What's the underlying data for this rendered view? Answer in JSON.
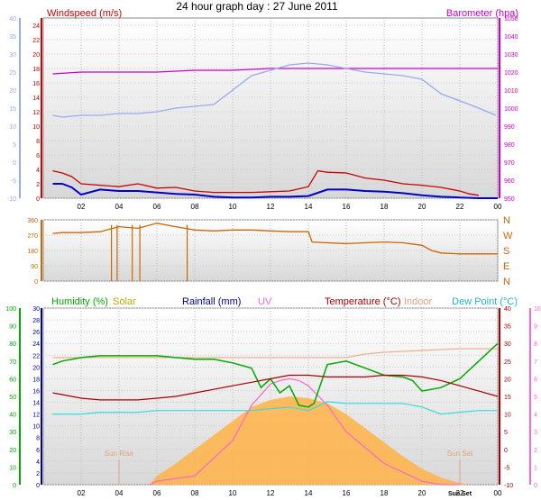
{
  "title": "24 hour graph day : 27 June 2011",
  "time_ticks": [
    "02",
    "04",
    "06",
    "08",
    "10",
    "12",
    "14",
    "16",
    "18",
    "20",
    "22",
    "00"
  ],
  "colors": {
    "wind": "#cc0000",
    "gust_avg": "#0000cc",
    "temp_air": "#99aaee",
    "baro": "#cc00cc",
    "dir": "#cc6600",
    "humidity": "#00aa00",
    "solar": "#ffb347",
    "rain": "#000099",
    "uv": "#ff66cc",
    "temperature": "#aa0000",
    "indoor": "#f0b090",
    "dew": "#33dddd"
  },
  "chart_data": [
    {
      "type": "line",
      "id": "wind-baro",
      "labels": {
        "left": "Windspeed (m/s)",
        "right": "Barometer (hpa)"
      },
      "x_range": [
        0,
        24
      ],
      "left_axis": {
        "ticks": [
          "0",
          "2",
          "4",
          "6",
          "8",
          "10",
          "12",
          "14",
          "16",
          "18",
          "20",
          "22",
          "24"
        ],
        "range": [
          0,
          25
        ]
      },
      "outer_left_axis": {
        "ticks": [
          "-10",
          "-5",
          "0",
          "5",
          "10",
          "15",
          "20",
          "25",
          "30",
          "35",
          "40"
        ],
        "range": [
          -10,
          40
        ]
      },
      "right_axis": {
        "ticks": [
          "950",
          "960",
          "970",
          "980",
          "990",
          "1000",
          "1010",
          "1020",
          "1030",
          "1040",
          "1050"
        ],
        "range": [
          950,
          1050
        ]
      },
      "series": [
        {
          "key": "baro",
          "axis": "right",
          "x": [
            0.5,
            2,
            4,
            6,
            8,
            10,
            12,
            13,
            14,
            16,
            18,
            20,
            22,
            24
          ],
          "y": [
            1019,
            1020,
            1020,
            1020,
            1021,
            1021,
            1022,
            1022,
            1022,
            1022,
            1022,
            1022,
            1022,
            1022
          ]
        },
        {
          "key": "temp_air",
          "axis": "outer_left",
          "x": [
            0.5,
            1,
            2,
            3,
            4,
            5,
            6,
            7,
            8,
            9,
            10,
            11,
            12,
            13,
            14,
            15,
            16,
            17,
            18,
            19,
            20,
            21,
            22,
            23,
            23.9
          ],
          "y": [
            13,
            12.5,
            13,
            13,
            13.5,
            13.5,
            14,
            15,
            15.5,
            16,
            20,
            24,
            25.5,
            27,
            27.5,
            27,
            26,
            25,
            24.5,
            24,
            23,
            19,
            17,
            15,
            13
          ]
        },
        {
          "key": "wind",
          "axis": "left",
          "x": [
            0.5,
            1,
            1.5,
            2,
            3,
            4,
            5,
            6,
            7,
            8,
            9,
            10,
            11,
            12,
            13,
            14,
            14.5,
            15,
            16,
            17,
            18,
            19,
            20,
            21,
            22,
            22.5,
            23
          ],
          "y": [
            3.8,
            3.5,
            3,
            2,
            1.8,
            1.6,
            2,
            1.4,
            1.5,
            1,
            0.8,
            0.8,
            0.8,
            0.9,
            1,
            1.6,
            3.8,
            3.6,
            3.5,
            2.8,
            2.5,
            2,
            1.8,
            1.5,
            1,
            0.6,
            0.4
          ]
        },
        {
          "key": "gust_avg",
          "axis": "left",
          "x": [
            0.5,
            1,
            1.5,
            2,
            3,
            4,
            5,
            6,
            7,
            8,
            9,
            10,
            11,
            12,
            13,
            14,
            15,
            16,
            17,
            18,
            19,
            20,
            21,
            22,
            23,
            24
          ],
          "y": [
            2,
            2,
            1.5,
            0.5,
            1.2,
            1,
            1,
            0.8,
            0.6,
            0.5,
            0.2,
            0.1,
            0.1,
            0.2,
            0.2,
            0.3,
            1.2,
            1.2,
            1,
            0.9,
            0.7,
            0.4,
            0.2,
            0.1,
            0,
            0
          ]
        }
      ]
    },
    {
      "type": "line",
      "id": "direction",
      "x_range": [
        0,
        24
      ],
      "left_axis": {
        "ticks": [
          "0",
          "90",
          "180",
          "270",
          "360"
        ],
        "range": [
          0,
          360
        ]
      },
      "right_labels": [
        "N",
        "W",
        "S",
        "E",
        "N"
      ],
      "series": [
        {
          "key": "dir",
          "x": [
            0.5,
            1,
            2,
            3,
            4,
            5,
            6,
            7,
            8,
            9,
            10,
            11,
            12,
            13,
            14,
            14.2,
            15,
            16,
            17,
            18,
            19,
            20,
            20.5,
            21,
            22,
            23,
            24
          ],
          "y": [
            280,
            285,
            285,
            290,
            320,
            310,
            340,
            320,
            300,
            295,
            300,
            300,
            295,
            290,
            290,
            230,
            225,
            220,
            225,
            230,
            225,
            210,
            180,
            165,
            160,
            160,
            160
          ]
        }
      ]
    },
    {
      "type": "line",
      "id": "combo",
      "labels": {
        "humidity": "Humidity (%)",
        "solar": "Solar",
        "rain": "Rainfall (mm)",
        "uv": "UV",
        "temperature": "Temperature (°C)",
        "indoor": "Indoor",
        "dew": "Dew Point (°C)",
        "sunrise": "Sun Rise",
        "sunset": "Sun Set",
        "sunset_tick": "Sun Set"
      },
      "x_range": [
        0,
        24
      ],
      "sunrise_x": 4,
      "sunset_x": 22,
      "humidity_axis": {
        "ticks": [
          "0",
          "10",
          "20",
          "30",
          "40",
          "50",
          "60",
          "70",
          "80",
          "90",
          "100"
        ],
        "range": [
          0,
          100
        ]
      },
      "rain_axis": {
        "ticks": [
          "0",
          "2",
          "4",
          "6",
          "8",
          "10",
          "12",
          "14",
          "16",
          "18",
          "20",
          "22",
          "24",
          "26",
          "28",
          "30"
        ],
        "range": [
          0,
          30
        ]
      },
      "temp_axis": {
        "ticks": [
          "-10",
          "-5",
          "0",
          "5",
          "10",
          "15",
          "20",
          "25",
          "30",
          "35",
          "40"
        ],
        "range": [
          -10,
          40
        ]
      },
      "uv_axis": {
        "ticks": [
          "0",
          "1",
          "2",
          "3",
          "4",
          "5",
          "6",
          "7",
          "8",
          "9",
          "10"
        ],
        "range": [
          0,
          10
        ]
      },
      "series": [
        {
          "key": "solar",
          "axis": "humidity",
          "x": [
            5.6,
            6,
            7,
            8,
            9,
            10,
            11,
            12,
            13,
            14,
            15,
            16,
            17,
            18,
            19,
            20,
            21,
            22,
            22.4
          ],
          "y": [
            0,
            5,
            12,
            20,
            28,
            36,
            44,
            48,
            50,
            49,
            46,
            40,
            32,
            24,
            16,
            9,
            4,
            1,
            0
          ]
        },
        {
          "key": "uv",
          "axis": "uv",
          "x": [
            5.6,
            6,
            8,
            10,
            11,
            12,
            12.5,
            13,
            13.5,
            14,
            15,
            16,
            18,
            20,
            21,
            22
          ],
          "y": [
            0,
            0.2,
            0.5,
            2.5,
            4.5,
            5.7,
            5.9,
            6,
            5.9,
            5.6,
            4.5,
            3,
            1.2,
            0.2,
            0,
            0
          ]
        },
        {
          "key": "indoor",
          "axis": "temp",
          "x": [
            0.5,
            2,
            4,
            6,
            8,
            10,
            12,
            14,
            16,
            17,
            18,
            20,
            22,
            24
          ],
          "y": [
            26,
            26,
            26,
            26,
            26,
            26,
            26,
            26,
            26,
            27,
            27.5,
            28,
            28.5,
            28.5
          ]
        },
        {
          "key": "humidity",
          "axis": "humidity",
          "x": [
            0.5,
            1,
            2,
            3,
            4,
            5,
            6,
            7,
            8,
            9,
            10,
            11,
            11.5,
            12,
            12.5,
            13,
            13.5,
            14,
            14.3,
            15,
            16,
            17,
            18,
            19,
            19.5,
            20,
            21,
            22,
            23,
            24
          ],
          "y": [
            68,
            70,
            72,
            73,
            73,
            73,
            73,
            72,
            71,
            71,
            69,
            66,
            55,
            60,
            52,
            56,
            45,
            44,
            46,
            68,
            70,
            66,
            62,
            61,
            59,
            53,
            55,
            60,
            70,
            80
          ]
        },
        {
          "key": "temperature",
          "axis": "temp",
          "x": [
            0.5,
            1,
            2,
            3,
            4,
            5,
            6,
            7,
            8,
            9,
            10,
            11,
            12,
            13,
            14,
            15,
            16,
            17,
            18,
            19,
            20,
            21,
            22,
            23,
            24
          ],
          "y": [
            16,
            15.5,
            14.5,
            14,
            14,
            14,
            14.5,
            15,
            16,
            17,
            18,
            19,
            20,
            21,
            21,
            20.5,
            20.5,
            20.5,
            21,
            21,
            20.5,
            19.5,
            18,
            16.5,
            15
          ]
        },
        {
          "key": "dew",
          "axis": "temp",
          "x": [
            0.5,
            1,
            2,
            3,
            4,
            5,
            6,
            7,
            8,
            9,
            10,
            11,
            12,
            13,
            14,
            15,
            16,
            17,
            18,
            19,
            20,
            21,
            22,
            23,
            24
          ],
          "y": [
            10,
            10,
            10,
            10.5,
            10.5,
            10.5,
            11,
            11,
            11,
            11,
            11,
            11,
            11.5,
            12,
            11,
            13.5,
            13,
            13,
            13,
            13,
            12,
            10,
            10.5,
            11,
            11
          ]
        }
      ]
    }
  ]
}
